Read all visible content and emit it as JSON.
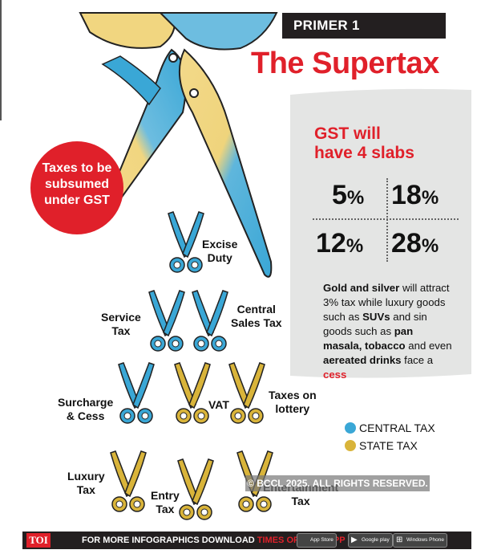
{
  "header": {
    "primer_label": "PRIMER 1",
    "title": "The Supertax"
  },
  "red_callout": {
    "text": "Taxes to be subsumed under GST"
  },
  "gst_panel": {
    "heading_line1": "GST will",
    "heading_line2": "have 4 slabs",
    "slabs": [
      {
        "value": "5",
        "unit": "%"
      },
      {
        "value": "18",
        "unit": "%"
      },
      {
        "value": "12",
        "unit": "%"
      },
      {
        "value": "28",
        "unit": "%"
      }
    ],
    "note": {
      "p1": "Gold and silver",
      "p2": " will attract 3% tax while luxury goods such as ",
      "p3": "SUVs",
      "p4": " and sin goods such as ",
      "p5": "pan masala, tobacco",
      "p6": " and even ",
      "p7": "aereated drinks",
      "p8": " face a ",
      "p9": "cess"
    }
  },
  "taxes": [
    {
      "name": "Excise Duty",
      "type": "central"
    },
    {
      "name": "Service Tax",
      "type": "central"
    },
    {
      "name": "Central Sales Tax",
      "type": "central"
    },
    {
      "name": "Surcharge & Cess",
      "type": "central"
    },
    {
      "name": "VAT",
      "type": "state"
    },
    {
      "name": "Taxes on lottery",
      "type": "state"
    },
    {
      "name": "Luxury Tax",
      "type": "state"
    },
    {
      "name": "Entry Tax",
      "type": "state"
    },
    {
      "name": "Entertainment Tax",
      "type": "state"
    }
  ],
  "tax_labels": {
    "excise_1": "Excise",
    "excise_2": "Duty",
    "service_1": "Service",
    "service_2": "Tax",
    "central_1": "Central",
    "central_2": "Sales Tax",
    "surcharge_1": "Surcharge",
    "surcharge_2": "& Cess",
    "vat": "VAT",
    "lottery_1": "Taxes on",
    "lottery_2": "lottery",
    "luxury_1": "Luxury",
    "luxury_2": "Tax",
    "entry_1": "Entry",
    "entry_2": "Tax",
    "entertainment_1": "Entertainment",
    "entertainment_2": "Tax"
  },
  "legend": {
    "central": {
      "label": "CENTRAL TAX",
      "color": "#3aa7d6"
    },
    "state": {
      "label": "STATE TAX",
      "color": "#d9b43a"
    }
  },
  "watermark": "© BCCL 2025. ALL RIGHTS RESERVED.",
  "footer": {
    "logo": "TOI",
    "text": "FOR MORE  INFOGRAPHICS DOWNLOAD ",
    "app_name": "TIMES OF INDIA APP",
    "badges": [
      {
        "label": "App Store",
        "icon": "apple-icon"
      },
      {
        "label": "Google play",
        "icon": "play-icon"
      },
      {
        "label": "Windows Phone",
        "icon": "windows-icon"
      }
    ]
  },
  "colors": {
    "accent_red": "#e0202a",
    "central_blue": "#3aa7d6",
    "state_yellow": "#d9b43a",
    "panel_grey": "#e4e5e4",
    "dark": "#231f20"
  }
}
